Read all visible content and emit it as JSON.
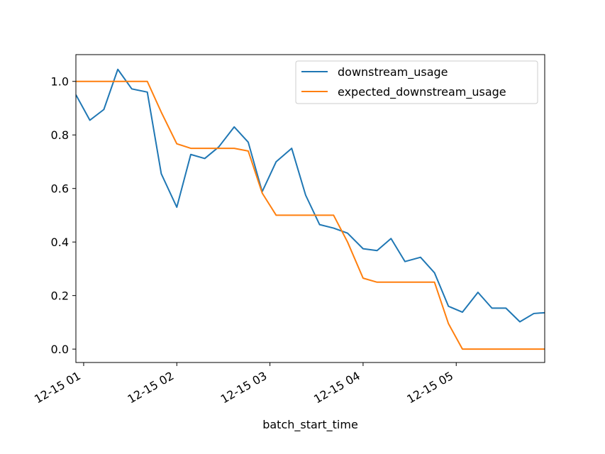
{
  "chart_data": {
    "type": "line",
    "title": "",
    "xlabel": "batch_start_time",
    "ylabel": "",
    "x_tick_labels": [
      "12-15 01",
      "12-15 02",
      "12-15 03",
      "12-15 04",
      "12-15 05"
    ],
    "y_tick_labels": [
      "0.0",
      "0.2",
      "0.4",
      "0.6",
      "0.8",
      "1.0"
    ],
    "ylim": [
      -0.05,
      1.1
    ],
    "xlim": [
      "2023-12-15 00:55",
      "2023-12-15 05:57"
    ],
    "grid": false,
    "legend_position": "top-right",
    "x": [
      "00:55",
      "01:04",
      "01:13",
      "01:22",
      "01:31",
      "01:41",
      "01:50",
      "02:00",
      "02:09",
      "02:18",
      "02:27",
      "02:37",
      "02:46",
      "02:55",
      "03:04",
      "03:14",
      "03:23",
      "03:32",
      "03:41",
      "03:50",
      "04:00",
      "04:09",
      "04:18",
      "04:27",
      "04:37",
      "04:46",
      "04:55",
      "05:04",
      "05:14",
      "05:23",
      "05:32",
      "05:41",
      "05:50",
      "05:57"
    ],
    "series": [
      {
        "name": "downstream_usage",
        "color": "#1f77b4",
        "values": [
          0.95,
          0.855,
          0.895,
          1.045,
          0.972,
          0.96,
          0.655,
          0.53,
          0.727,
          0.712,
          0.755,
          0.83,
          0.773,
          0.588,
          0.7,
          0.75,
          0.575,
          0.465,
          0.452,
          0.433,
          0.375,
          0.368,
          0.413,
          0.327,
          0.343,
          0.285,
          0.16,
          0.138,
          0.212,
          0.153,
          0.153,
          0.102,
          0.133,
          0.136
        ]
      },
      {
        "name": "expected_downstream_usage",
        "color": "#ff7f0e",
        "values": [
          1.0,
          1.0,
          1.0,
          1.0,
          1.0,
          1.0,
          0.885,
          0.767,
          0.75,
          0.75,
          0.75,
          0.75,
          0.74,
          0.583,
          0.5,
          0.5,
          0.5,
          0.5,
          0.5,
          0.4,
          0.265,
          0.25,
          0.25,
          0.25,
          0.25,
          0.25,
          0.095,
          0.0,
          0.0,
          0.0,
          0.0,
          0.0,
          0.0,
          0.0
        ]
      }
    ]
  }
}
